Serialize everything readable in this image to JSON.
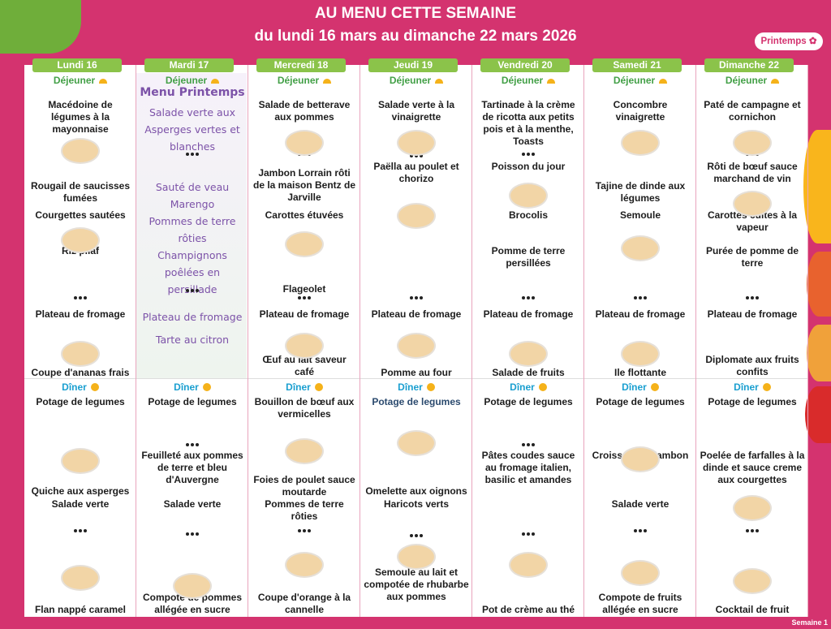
{
  "header": {
    "title": "AU MENU CETTE SEMAINE",
    "subtitle": "du lundi 16 mars au dimanche 22 mars 2026",
    "badge": "Printemps"
  },
  "days": [
    {
      "name": "Lundi 16",
      "lunch_label": "Déjeuner",
      "lunch": [
        "Macédoine de légumes à la mayonnaise",
        "Rougail de saucisses fumées",
        "Courgettes sautées",
        "Riz pilaf",
        "Plateau de fromage",
        "Coupe d'ananas frais"
      ],
      "dinner_label": "Dîner",
      "dinner": [
        "Potage de legumes",
        "Quiche aux asperges",
        "Salade verte",
        "Flan nappé caramel"
      ]
    },
    {
      "name": "Mardi 17",
      "lunch_label": "Déjeuner",
      "theme": "Menu Printemps",
      "lunch": [
        "Salade verte aux Asperges vertes et blanches",
        "Sauté de veau Marengo",
        "Pommes de terre rôties",
        "Champignons poêlées en persillade",
        "Plateau de fromage",
        "Tarte au citron"
      ],
      "dinner_label": "Dîner",
      "dinner": [
        "Potage de legumes",
        "Feuilleté aux pommes de terre et bleu d'Auvergne",
        "Salade verte",
        "Compote de pommes allégée en sucre"
      ]
    },
    {
      "name": "Mercredi 18",
      "lunch_label": "Déjeuner",
      "lunch": [
        "Salade de betterave aux pommes",
        "Jambon Lorrain rôti de la maison Bentz de Jarville",
        "Carottes étuvées",
        "Flageolet",
        "Plateau de fromage",
        "Œuf au lait saveur café"
      ],
      "dinner_label": "Dîner",
      "dinner": [
        "Bouillon de bœuf aux vermicelles",
        "Foies de poulet sauce moutarde",
        "Pommes de terre rôties",
        "Coupe d'orange à la cannelle"
      ]
    },
    {
      "name": "Jeudi 19",
      "lunch_label": "Déjeuner",
      "lunch": [
        "Salade verte à la vinaigrette",
        "Paëlla au poulet et chorizo",
        "Plateau de fromage",
        "Pomme au four"
      ],
      "dinner_label": "Dîner",
      "dinner": [
        "Potage de legumes",
        "Omelette aux oignons",
        "Haricots verts",
        "Semoule au lait et compotée de rhubarbe aux pommes"
      ]
    },
    {
      "name": "Vendredi 20",
      "lunch_label": "Déjeuner",
      "lunch": [
        "Tartinade à la crème de ricotta aux petits pois et à la menthe, Toasts",
        "Poisson du jour",
        "Brocolis",
        "Pomme de terre persillées",
        "Plateau de fromage",
        "Salade de fruits"
      ],
      "dinner_label": "Dîner",
      "dinner": [
        "Potage de legumes",
        "Pâtes coudes sauce au fromage italien, basilic et amandes",
        "Pot de crème au thé"
      ]
    },
    {
      "name": "Samedi 21",
      "lunch_label": "Déjeuner",
      "lunch": [
        "Concombre vinaigrette",
        "Tajine de dinde aux légumes",
        "Semoule",
        "Plateau de fromage",
        "Ile flottante"
      ],
      "dinner_label": "Dîner",
      "dinner": [
        "Potage de legumes",
        "Croissant au jambon",
        "Salade verte",
        "Compote de fruits allégée en sucre"
      ]
    },
    {
      "name": "Dimanche 22",
      "lunch_label": "Déjeuner",
      "lunch": [
        "Paté de campagne et cornichon",
        "Rôti de bœuf sauce marchand de vin",
        "Carottes cuites à la vapeur",
        "Purée de pomme de terre",
        "Plateau de fromage",
        "Diplomate aux fruits confits"
      ],
      "dinner_label": "Dîner",
      "dinner": [
        "Potage de legumes",
        "Poelée de farfalles à la dinde et sauce creme aux courgettes",
        "Cocktail de fruit"
      ]
    }
  ],
  "footer": "Semaine 1"
}
